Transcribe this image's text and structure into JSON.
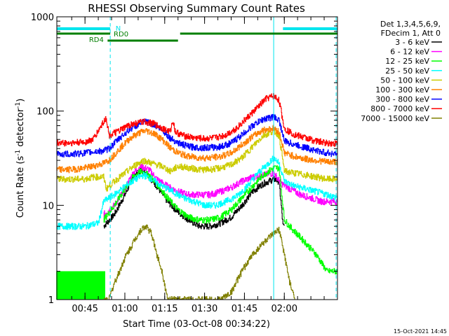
{
  "chart_data": {
    "type": "line",
    "title": "RHESSI Observing Summary Count Rates",
    "xlabel": "Start Time (03-Oct-08 00:34:22)",
    "ylabel_main": "Count Rate (s",
    "ylabel_sup1": "-1",
    "ylabel_mid": " detector",
    "ylabel_sup2": "-1",
    "ylabel_end": ")",
    "y_scale": "log",
    "ylim": [
      1,
      1000
    ],
    "xlim_minutes": [
      34.4,
      140.0
    ],
    "x_ticks": [
      {
        "minute": 45,
        "label": "00:45"
      },
      {
        "minute": 60,
        "label": "01:00"
      },
      {
        "minute": 75,
        "label": "01:15"
      },
      {
        "minute": 90,
        "label": "01:30"
      },
      {
        "minute": 105,
        "label": "01:45"
      },
      {
        "minute": 120,
        "label": "02:00"
      }
    ],
    "y_ticks": [
      {
        "value": 1,
        "label": "1"
      },
      {
        "value": 10,
        "label": "10"
      },
      {
        "value": 100,
        "label": "100"
      },
      {
        "value": 1000,
        "label": "1000"
      }
    ],
    "legend_header": [
      "Det 1,3,4,5,6,9,",
      "FDecim 1, Att 0"
    ],
    "legend_placement": "right",
    "timestamp": "15-Oct-2021 14:45",
    "flags": [
      {
        "label": "N",
        "color": "#00e5ee"
      },
      {
        "label": "RD0",
        "color": "#007f00"
      },
      {
        "label": "RD4",
        "color": "#007f00"
      }
    ],
    "night_bars": [
      [
        34.4,
        54.5
      ],
      [
        119.5,
        140.0
      ]
    ],
    "rd0_bars": [
      [
        34.4,
        54.5
      ],
      [
        80.8,
        140.0
      ]
    ],
    "rd4_bars": [
      [
        53.5,
        80.0
      ]
    ],
    "event_lines": [
      {
        "minute": 54.5,
        "style": "dashed"
      },
      {
        "minute": 139.5,
        "style": "dashed"
      },
      {
        "minute": 116.0,
        "style": "solid"
      }
    ],
    "series": [
      {
        "name": "3 - 6 keV",
        "color": "#000000",
        "points": [
          [
            52,
            6
          ],
          [
            56,
            8
          ],
          [
            60,
            13
          ],
          [
            63,
            20
          ],
          [
            66,
            24
          ],
          [
            68,
            22
          ],
          [
            72,
            16
          ],
          [
            76,
            11
          ],
          [
            80,
            8.5
          ],
          [
            84,
            7
          ],
          [
            88,
            6
          ],
          [
            92,
            6
          ],
          [
            96,
            6.5
          ],
          [
            100,
            7.5
          ],
          [
            104,
            10
          ],
          [
            108,
            14
          ],
          [
            112,
            17
          ],
          [
            116,
            19
          ],
          [
            118,
            18
          ],
          [
            119.5,
            6
          ],
          [
            120,
            6
          ]
        ]
      },
      {
        "name": "6 - 12 keV",
        "color": "#ff00ff",
        "points": [
          [
            52,
            8
          ],
          [
            56,
            10
          ],
          [
            60,
            15
          ],
          [
            63,
            22
          ],
          [
            66,
            26
          ],
          [
            69,
            24
          ],
          [
            72,
            19
          ],
          [
            76,
            16
          ],
          [
            80,
            14
          ],
          [
            84,
            13
          ],
          [
            88,
            13
          ],
          [
            92,
            13
          ],
          [
            96,
            14
          ],
          [
            100,
            15.5
          ],
          [
            104,
            18
          ],
          [
            108,
            20
          ],
          [
            112,
            21
          ],
          [
            116,
            22
          ],
          [
            119,
            17
          ],
          [
            122,
            15
          ],
          [
            126,
            13
          ],
          [
            130,
            12
          ],
          [
            134,
            11
          ],
          [
            138,
            11
          ],
          [
            140,
            11
          ]
        ]
      },
      {
        "name": "12 - 25 keV",
        "color": "#00ff00",
        "points": [
          [
            52,
            7
          ],
          [
            56,
            10
          ],
          [
            60,
            15
          ],
          [
            63,
            20
          ],
          [
            66,
            23
          ],
          [
            69,
            21
          ],
          [
            72,
            17
          ],
          [
            76,
            12
          ],
          [
            80,
            9
          ],
          [
            84,
            7.5
          ],
          [
            88,
            7
          ],
          [
            92,
            7
          ],
          [
            96,
            7.5
          ],
          [
            100,
            9
          ],
          [
            104,
            12
          ],
          [
            108,
            16
          ],
          [
            112,
            21
          ],
          [
            116,
            25
          ],
          [
            118,
            25
          ],
          [
            120,
            7
          ],
          [
            122,
            6
          ],
          [
            128,
            4
          ],
          [
            132,
            3
          ],
          [
            136,
            2
          ],
          [
            140,
            2
          ]
        ]
      },
      {
        "name": "25 - 50 keV",
        "color": "#00ffff",
        "points": [
          [
            34.4,
            6
          ],
          [
            40,
            6
          ],
          [
            45,
            6
          ],
          [
            50,
            6.5
          ],
          [
            52,
            11
          ],
          [
            56,
            13
          ],
          [
            60,
            16
          ],
          [
            64,
            19
          ],
          [
            67,
            21
          ],
          [
            70,
            19
          ],
          [
            74,
            16
          ],
          [
            78,
            14
          ],
          [
            82,
            12
          ],
          [
            86,
            11
          ],
          [
            90,
            10
          ],
          [
            94,
            10
          ],
          [
            98,
            11
          ],
          [
            102,
            12.5
          ],
          [
            106,
            16
          ],
          [
            110,
            22
          ],
          [
            114,
            28
          ],
          [
            116,
            32
          ],
          [
            118,
            28
          ],
          [
            120,
            18
          ],
          [
            124,
            16
          ],
          [
            128,
            15
          ],
          [
            132,
            14
          ],
          [
            136,
            13
          ],
          [
            140,
            12
          ]
        ]
      },
      {
        "name": "50 - 100 keV",
        "color": "#cccc00",
        "points": [
          [
            34.4,
            19
          ],
          [
            40,
            19
          ],
          [
            45,
            19
          ],
          [
            48,
            20
          ],
          [
            52,
            20
          ],
          [
            53,
            15
          ],
          [
            56,
            18
          ],
          [
            60,
            22
          ],
          [
            64,
            27
          ],
          [
            67,
            30
          ],
          [
            70,
            28
          ],
          [
            74,
            26
          ],
          [
            77,
            23
          ],
          [
            80,
            26
          ],
          [
            84,
            25
          ],
          [
            88,
            24
          ],
          [
            92,
            24
          ],
          [
            96,
            25
          ],
          [
            100,
            27
          ],
          [
            104,
            32
          ],
          [
            108,
            42
          ],
          [
            112,
            55
          ],
          [
            116,
            62
          ],
          [
            118,
            55
          ],
          [
            120,
            23
          ],
          [
            124,
            22
          ],
          [
            128,
            21
          ],
          [
            132,
            20
          ],
          [
            136,
            19
          ],
          [
            140,
            19
          ]
        ]
      },
      {
        "name": "100 - 300 keV",
        "color": "#ff8000",
        "points": [
          [
            34.4,
            24
          ],
          [
            40,
            24
          ],
          [
            45,
            25
          ],
          [
            48,
            26
          ],
          [
            52,
            28
          ],
          [
            54,
            30
          ],
          [
            58,
            40
          ],
          [
            62,
            52
          ],
          [
            66,
            60
          ],
          [
            68,
            62
          ],
          [
            71,
            58
          ],
          [
            74,
            50
          ],
          [
            77,
            41
          ],
          [
            80,
            36
          ],
          [
            84,
            33
          ],
          [
            88,
            32
          ],
          [
            92,
            32
          ],
          [
            96,
            33
          ],
          [
            100,
            36
          ],
          [
            104,
            44
          ],
          [
            108,
            54
          ],
          [
            112,
            63
          ],
          [
            116,
            66
          ],
          [
            118,
            60
          ],
          [
            120,
            36
          ],
          [
            124,
            33
          ],
          [
            128,
            31
          ],
          [
            132,
            30
          ],
          [
            136,
            29
          ],
          [
            140,
            29
          ]
        ]
      },
      {
        "name": "300 - 800 keV",
        "color": "#0000ff",
        "points": [
          [
            34.4,
            35
          ],
          [
            40,
            35
          ],
          [
            45,
            36
          ],
          [
            48,
            37
          ],
          [
            52,
            38
          ],
          [
            54,
            40
          ],
          [
            58,
            52
          ],
          [
            62,
            65
          ],
          [
            66,
            75
          ],
          [
            68,
            77
          ],
          [
            71,
            72
          ],
          [
            74,
            63
          ],
          [
            77,
            52
          ],
          [
            80,
            46
          ],
          [
            84,
            42
          ],
          [
            88,
            41
          ],
          [
            92,
            41
          ],
          [
            96,
            42
          ],
          [
            100,
            46
          ],
          [
            104,
            56
          ],
          [
            108,
            70
          ],
          [
            112,
            82
          ],
          [
            116,
            87
          ],
          [
            118,
            80
          ],
          [
            120,
            48
          ],
          [
            124,
            44
          ],
          [
            128,
            41
          ],
          [
            132,
            38
          ],
          [
            136,
            36
          ],
          [
            140,
            35
          ]
        ]
      },
      {
        "name": "800 - 7000 keV",
        "color": "#ff0000",
        "points": [
          [
            34.4,
            46
          ],
          [
            40,
            46
          ],
          [
            45,
            47
          ],
          [
            48,
            50
          ],
          [
            50,
            62
          ],
          [
            52,
            78
          ],
          [
            53,
            84
          ],
          [
            54,
            55
          ],
          [
            58,
            62
          ],
          [
            62,
            72
          ],
          [
            66,
            76
          ],
          [
            68,
            77
          ],
          [
            71,
            73
          ],
          [
            74,
            66
          ],
          [
            77,
            60
          ],
          [
            78,
            80
          ],
          [
            79,
            60
          ],
          [
            82,
            55
          ],
          [
            86,
            52
          ],
          [
            90,
            51
          ],
          [
            94,
            52
          ],
          [
            98,
            56
          ],
          [
            102,
            66
          ],
          [
            106,
            85
          ],
          [
            110,
            110
          ],
          [
            113,
            135
          ],
          [
            116,
            145
          ],
          [
            118,
            130
          ],
          [
            120,
            65
          ],
          [
            124,
            56
          ],
          [
            128,
            52
          ],
          [
            132,
            48
          ],
          [
            136,
            46
          ],
          [
            140,
            45
          ]
        ]
      },
      {
        "name": "7000 - 15000 keV",
        "color": "#808000",
        "points": [
          [
            52,
            1
          ],
          [
            54,
            1
          ],
          [
            56,
            1.5
          ],
          [
            58,
            2
          ],
          [
            60,
            2.8
          ],
          [
            62,
            3.5
          ],
          [
            64,
            4.5
          ],
          [
            66,
            5.5
          ],
          [
            68,
            6
          ],
          [
            70,
            5
          ],
          [
            72,
            3
          ],
          [
            74,
            2
          ],
          [
            76,
            1
          ],
          [
            82,
            1
          ],
          [
            90,
            1
          ],
          [
            96,
            1
          ],
          [
            100,
            1.2
          ],
          [
            104,
            2
          ],
          [
            108,
            3
          ],
          [
            112,
            4
          ],
          [
            116,
            5
          ],
          [
            118,
            5.5
          ],
          [
            120,
            3
          ],
          [
            122,
            1.5
          ],
          [
            124,
            1
          ]
        ]
      }
    ],
    "background_hatch": {
      "color": "#00ff00",
      "range": [
        34.4,
        52.5
      ],
      "level_low": 1.0,
      "level_high": 2.0
    }
  }
}
